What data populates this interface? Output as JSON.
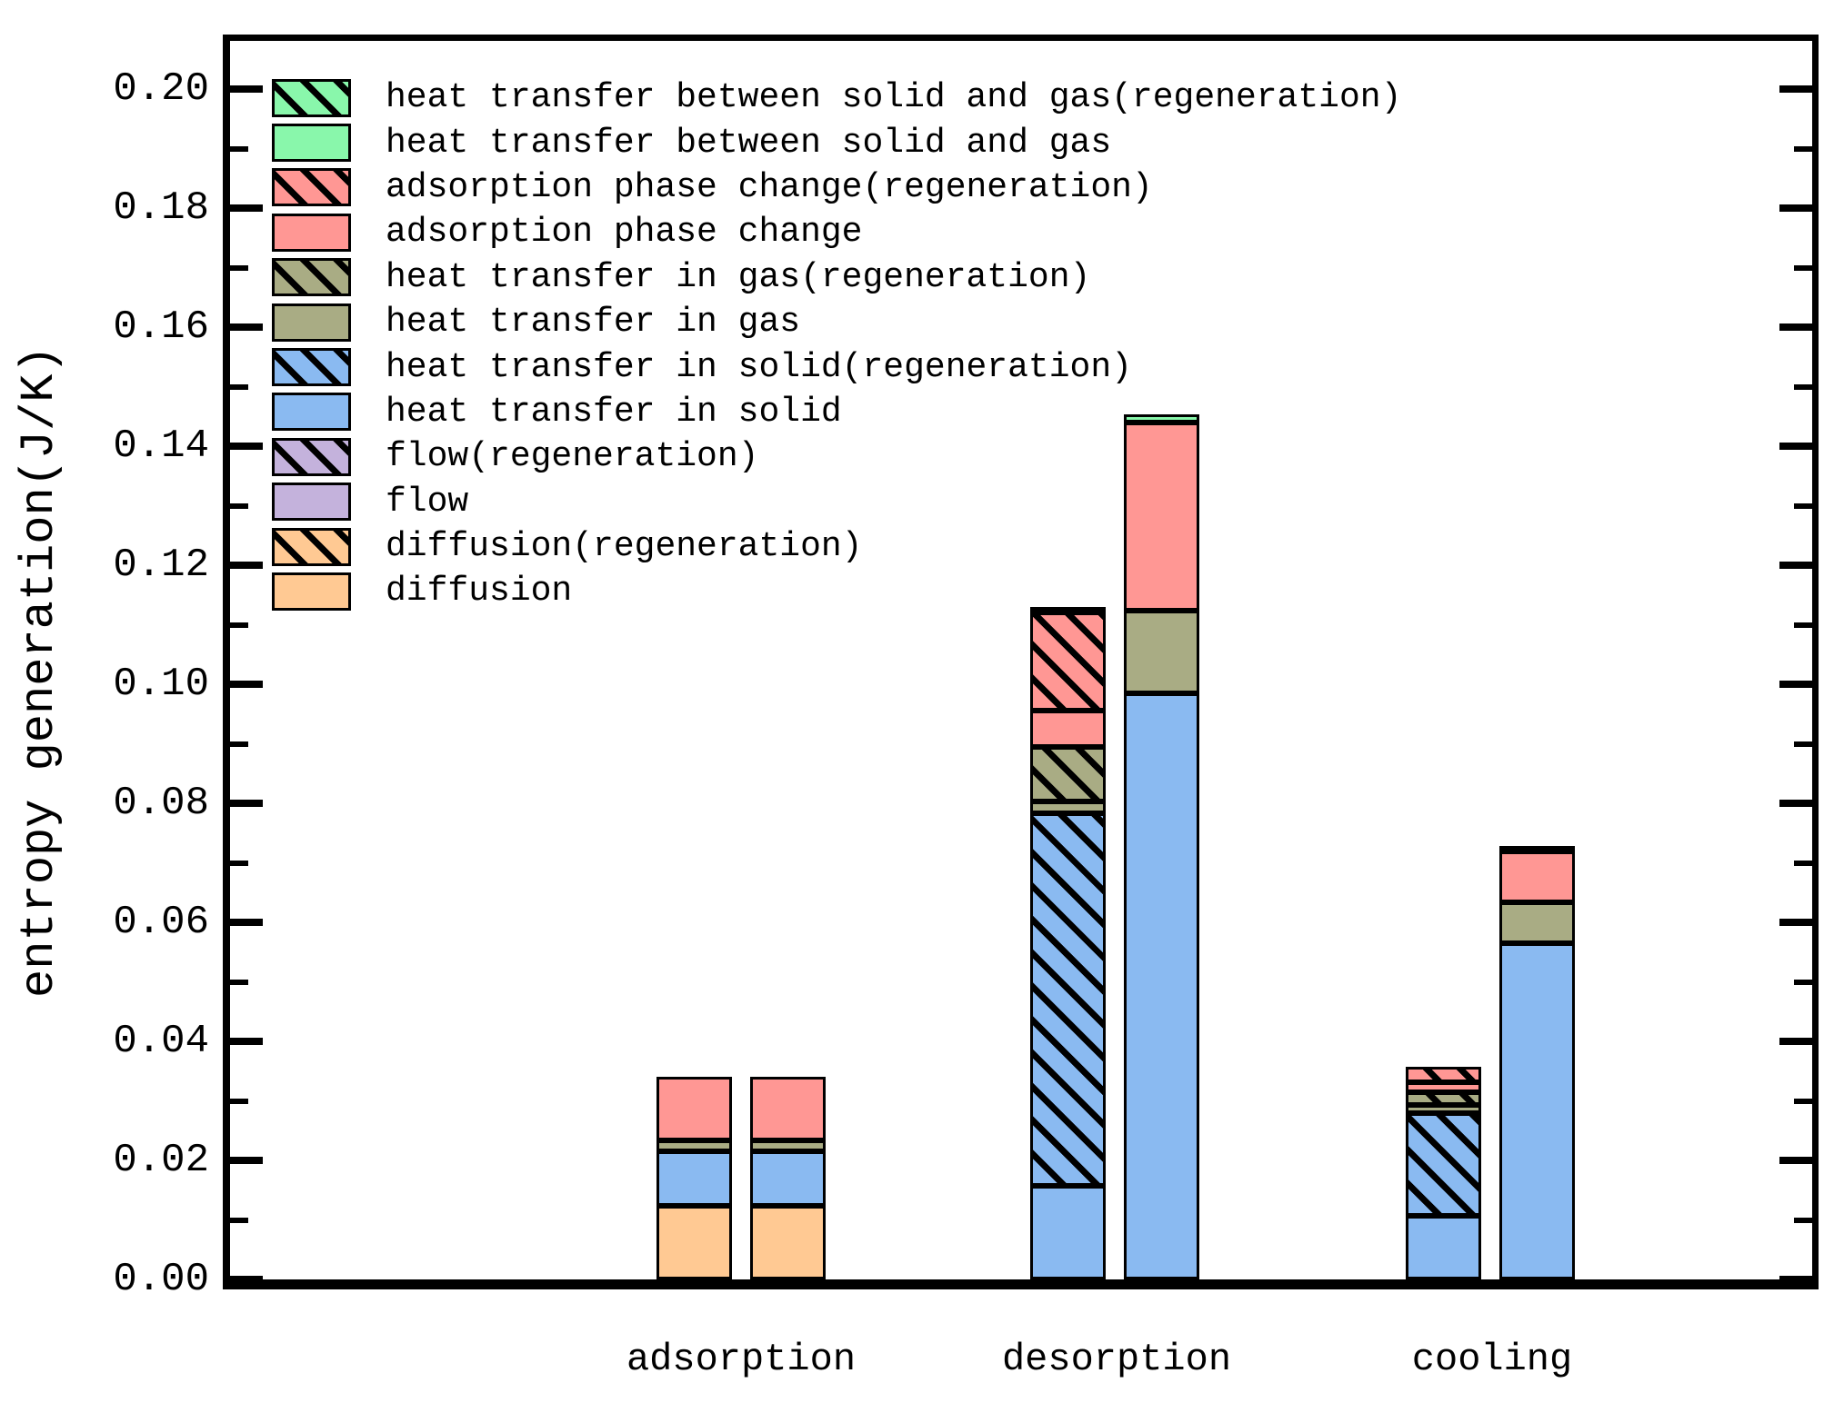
{
  "y_axis": {
    "label": "entropy generation(J/K)",
    "tick_labels": [
      "0.00",
      "0.02",
      "0.04",
      "0.06",
      "0.08",
      "0.10",
      "0.12",
      "0.14",
      "0.16",
      "0.18",
      "0.20"
    ],
    "minor_tick_interval": 0.01
  },
  "x_axis": {
    "categories": [
      "adsorption",
      "desorption",
      "cooling"
    ]
  },
  "chart_data": {
    "type": "bar",
    "stacked": true,
    "unit": "J/K",
    "title": "",
    "xlabel": "",
    "ylabel": "entropy generation(J/K)",
    "ylim": [
      0,
      0.208
    ],
    "ytick_step": 0.02,
    "grid": false,
    "legend_position": "upper-left-inside",
    "categories": [
      "adsorption",
      "desorption",
      "cooling"
    ],
    "colors": {
      "green": "#89F7AB",
      "salmon": "#FF9794",
      "olive": "#A9AC84",
      "blue": "#8ABAF1",
      "purple": "#C4B2DC",
      "orange": "#FFC993"
    },
    "series_legend": [
      {
        "label": "heat transfer between solid and gas(regeneration)",
        "color": "green",
        "hatch": true
      },
      {
        "label": "heat transfer between solid and gas",
        "color": "green",
        "hatch": false
      },
      {
        "label": "adsorption phase change(regeneration)",
        "color": "salmon",
        "hatch": true
      },
      {
        "label": "adsorption phase change",
        "color": "salmon",
        "hatch": false
      },
      {
        "label": "heat transfer in gas(regeneration)",
        "color": "olive",
        "hatch": true
      },
      {
        "label": "heat transfer in gas",
        "color": "olive",
        "hatch": false
      },
      {
        "label": "heat transfer in solid(regeneration)",
        "color": "blue",
        "hatch": true
      },
      {
        "label": "heat transfer in solid",
        "color": "blue",
        "hatch": false
      },
      {
        "label": "flow(regeneration)",
        "color": "purple",
        "hatch": true
      },
      {
        "label": "flow",
        "color": "purple",
        "hatch": false
      },
      {
        "label": "diffusion(regeneration)",
        "color": "orange",
        "hatch": true
      },
      {
        "label": "diffusion",
        "color": "orange",
        "hatch": false
      }
    ],
    "groups": [
      {
        "category": "adsorption",
        "bars": [
          {
            "name": "bar-1",
            "segments": [
              {
                "series": "diffusion",
                "color": "orange",
                "hatch": false,
                "value": 0.0123
              },
              {
                "series": "heat transfer in solid",
                "color": "blue",
                "hatch": false,
                "value": 0.0092
              },
              {
                "series": "heat transfer in gas",
                "color": "olive",
                "hatch": false,
                "value": 0.0018
              },
              {
                "series": "adsorption phase change",
                "color": "salmon",
                "hatch": false,
                "value": 0.0107
              }
            ]
          },
          {
            "name": "bar-2",
            "segments": [
              {
                "series": "diffusion",
                "color": "orange",
                "hatch": false,
                "value": 0.0123
              },
              {
                "series": "heat transfer in solid",
                "color": "blue",
                "hatch": false,
                "value": 0.0092
              },
              {
                "series": "heat transfer in gas",
                "color": "olive",
                "hatch": false,
                "value": 0.0018
              },
              {
                "series": "adsorption phase change",
                "color": "salmon",
                "hatch": false,
                "value": 0.0107
              }
            ]
          }
        ]
      },
      {
        "category": "desorption",
        "bars": [
          {
            "name": "bar-1",
            "segments": [
              {
                "series": "heat transfer in solid",
                "color": "blue",
                "hatch": false,
                "value": 0.0158
              },
              {
                "series": "heat transfer in solid(regeneration)",
                "color": "blue",
                "hatch": true,
                "value": 0.0625
              },
              {
                "series": "heat transfer in gas",
                "color": "olive",
                "hatch": false,
                "value": 0.002
              },
              {
                "series": "heat transfer in gas(regeneration)",
                "color": "olive",
                "hatch": true,
                "value": 0.0091
              },
              {
                "series": "adsorption phase change",
                "color": "salmon",
                "hatch": false,
                "value": 0.0061
              },
              {
                "series": "adsorption phase change(regeneration)",
                "color": "salmon",
                "hatch": true,
                "value": 0.0166
              },
              {
                "series": "heat transfer between solid and gas(regeneration)",
                "color": "green",
                "hatch": true,
                "value": 0.0008
              }
            ]
          },
          {
            "name": "bar-2",
            "segments": [
              {
                "series": "heat transfer in solid",
                "color": "blue",
                "hatch": false,
                "value": 0.0985
              },
              {
                "series": "heat transfer in gas",
                "color": "olive",
                "hatch": false,
                "value": 0.0139
              },
              {
                "series": "adsorption phase change",
                "color": "salmon",
                "hatch": false,
                "value": 0.0315
              },
              {
                "series": "heat transfer between solid and gas",
                "color": "green",
                "hatch": false,
                "value": 0.0015
              }
            ]
          }
        ]
      },
      {
        "category": "cooling",
        "bars": [
          {
            "name": "bar-1",
            "segments": [
              {
                "series": "heat transfer in solid",
                "color": "blue",
                "hatch": false,
                "value": 0.0107
              },
              {
                "series": "heat transfer in solid(regeneration)",
                "color": "blue",
                "hatch": true,
                "value": 0.0172
              },
              {
                "series": "heat transfer in gas",
                "color": "olive",
                "hatch": false,
                "value": 0.0014
              },
              {
                "series": "heat transfer in gas(regeneration)",
                "color": "olive",
                "hatch": true,
                "value": 0.0022
              },
              {
                "series": "adsorption phase change",
                "color": "salmon",
                "hatch": false,
                "value": 0.0016
              },
              {
                "series": "adsorption phase change(regeneration)",
                "color": "salmon",
                "hatch": true,
                "value": 0.0026
              }
            ]
          },
          {
            "name": "bar-2",
            "segments": [
              {
                "series": "heat transfer in solid",
                "color": "blue",
                "hatch": false,
                "value": 0.0565
              },
              {
                "series": "heat transfer in gas",
                "color": "olive",
                "hatch": false,
                "value": 0.0069
              },
              {
                "series": "adsorption phase change",
                "color": "salmon",
                "hatch": false,
                "value": 0.0085
              },
              {
                "series": "heat transfer between solid and gas",
                "color": "green",
                "hatch": false,
                "value": 0.0009
              }
            ]
          }
        ]
      }
    ]
  }
}
